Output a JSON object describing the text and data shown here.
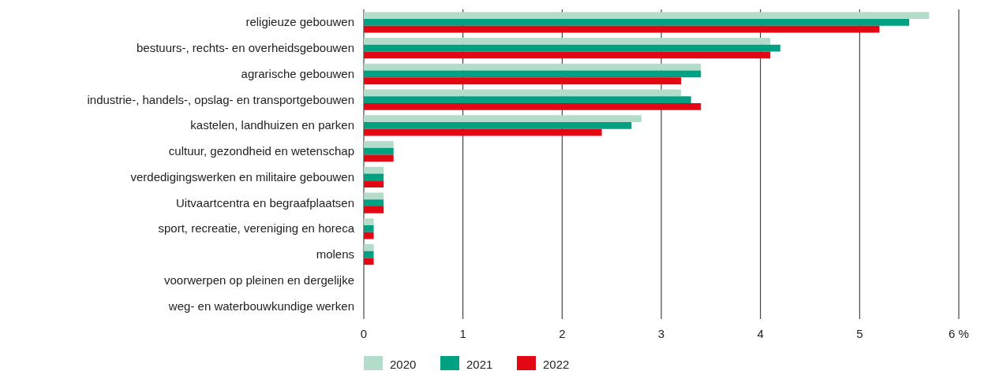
{
  "chart_data": {
    "type": "bar",
    "orientation": "horizontal",
    "categories": [
      "religieuze gebouwen",
      "bestuurs-, rechts- en overheidsgebouwen",
      "agrarische gebouwen",
      "industrie-, handels-, opslag- en transportgebouwen",
      "kastelen, landhuizen en parken",
      "cultuur, gezondheid en wetenschap",
      "verdedigingswerken en militaire gebouwen",
      "Uitvaartcentra en begraafplaatsen",
      "sport, recreatie, vereniging en horeca",
      "molens",
      "voorwerpen op pleinen en dergelijke",
      "weg- en waterbouwkundige werken"
    ],
    "series": [
      {
        "name": "2020",
        "color": "#b3dccb",
        "values": [
          5.7,
          4.1,
          3.4,
          3.2,
          2.8,
          0.3,
          0.2,
          0.2,
          0.1,
          0.1,
          0,
          0
        ]
      },
      {
        "name": "2021",
        "color": "#00a082",
        "values": [
          5.5,
          4.2,
          3.4,
          3.3,
          2.7,
          0.3,
          0.2,
          0.2,
          0.1,
          0.1,
          0,
          0
        ]
      },
      {
        "name": "2022",
        "color": "#e30613",
        "values": [
          5.2,
          4.1,
          3.2,
          3.4,
          2.4,
          0.3,
          0.2,
          0.2,
          0.1,
          0.1,
          0,
          0
        ]
      }
    ],
    "xlim": [
      0,
      6
    ],
    "xticks": [
      0,
      1,
      2,
      3,
      4,
      5,
      {
        "value": 6,
        "label": "6 %"
      }
    ],
    "grid": "x",
    "legend": "bottom"
  }
}
